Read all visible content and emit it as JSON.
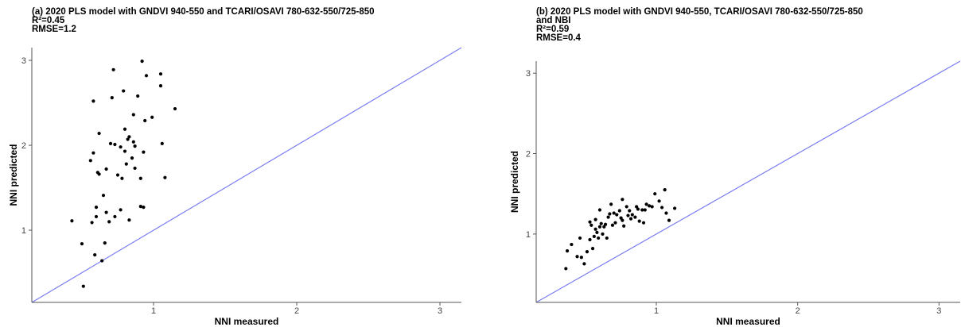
{
  "chart_data": [
    {
      "type": "scatter",
      "title": "(a) 2020 PLS model with GNDVI 940-550 and TCARI/OSAVI 780-632-550/725-850\nR²=0.45\nRMSE=1.2",
      "xlabel": "NNI measured",
      "ylabel": "NNI predicted",
      "xlim": [
        0.15,
        3.15
      ],
      "ylim": [
        0.15,
        3.15
      ],
      "xticks": [
        1,
        2,
        3
      ],
      "yticks": [
        1,
        2,
        3
      ],
      "x_tick_labels": [
        "1",
        "2",
        "3"
      ],
      "y_tick_labels": [
        "1",
        "2",
        "3"
      ],
      "grid": false,
      "identity_line": true,
      "points": [
        [
          0.43,
          1.11
        ],
        [
          0.5,
          0.84
        ],
        [
          0.51,
          0.34
        ],
        [
          0.56,
          1.82
        ],
        [
          0.57,
          1.09
        ],
        [
          0.58,
          2.52
        ],
        [
          0.58,
          1.91
        ],
        [
          0.59,
          0.71
        ],
        [
          0.6,
          1.27
        ],
        [
          0.6,
          1.16
        ],
        [
          0.61,
          1.68
        ],
        [
          0.62,
          1.66
        ],
        [
          0.62,
          2.14
        ],
        [
          0.64,
          0.64
        ],
        [
          0.65,
          1.41
        ],
        [
          0.66,
          0.85
        ],
        [
          0.67,
          1.72
        ],
        [
          0.67,
          1.21
        ],
        [
          0.69,
          1.1
        ],
        [
          0.7,
          2.02
        ],
        [
          0.71,
          2.56
        ],
        [
          0.72,
          2.89
        ],
        [
          0.73,
          1.16
        ],
        [
          0.73,
          2.01
        ],
        [
          0.75,
          1.65
        ],
        [
          0.77,
          1.98
        ],
        [
          0.77,
          1.24
        ],
        [
          0.78,
          1.61
        ],
        [
          0.79,
          2.64
        ],
        [
          0.8,
          2.19
        ],
        [
          0.8,
          1.93
        ],
        [
          0.81,
          1.78
        ],
        [
          0.82,
          2.07
        ],
        [
          0.83,
          1.12
        ],
        [
          0.83,
          2.1
        ],
        [
          0.85,
          1.85
        ],
        [
          0.86,
          2.36
        ],
        [
          0.86,
          2.04
        ],
        [
          0.87,
          1.73
        ],
        [
          0.87,
          1.99
        ],
        [
          0.89,
          2.58
        ],
        [
          0.91,
          1.61
        ],
        [
          0.91,
          1.28
        ],
        [
          0.92,
          2.99
        ],
        [
          0.93,
          1.27
        ],
        [
          0.93,
          1.92
        ],
        [
          0.94,
          2.29
        ],
        [
          0.95,
          2.82
        ],
        [
          0.99,
          2.33
        ],
        [
          1.05,
          2.84
        ],
        [
          1.05,
          2.7
        ],
        [
          1.06,
          2.02
        ],
        [
          1.08,
          1.62
        ],
        [
          1.15,
          2.43
        ]
      ]
    },
    {
      "type": "scatter",
      "title": "(b) 2020 PLS model with GNDVI 940-550, TCARI/OSAVI 780-632-550/725-850\nand NBI\nR²=0.59\nRMSE=0.4",
      "xlabel": "NNI measured",
      "ylabel": "NNI predicted",
      "xlim": [
        0.15,
        3.15
      ],
      "ylim": [
        0.15,
        3.15
      ],
      "xticks": [
        1,
        2,
        3
      ],
      "yticks": [
        1,
        2,
        3
      ],
      "x_tick_labels": [
        "1",
        "2",
        "3"
      ],
      "y_tick_labels": [
        "1",
        "2",
        "3"
      ],
      "grid": false,
      "identity_line": true,
      "points": [
        [
          0.36,
          0.57
        ],
        [
          0.37,
          0.79
        ],
        [
          0.4,
          0.87
        ],
        [
          0.44,
          0.72
        ],
        [
          0.46,
          0.95
        ],
        [
          0.47,
          0.71
        ],
        [
          0.49,
          0.63
        ],
        [
          0.51,
          0.78
        ],
        [
          0.53,
          0.93
        ],
        [
          0.53,
          1.15
        ],
        [
          0.54,
          1.11
        ],
        [
          0.55,
          0.82
        ],
        [
          0.56,
          0.97
        ],
        [
          0.57,
          1.18
        ],
        [
          0.57,
          1.06
        ],
        [
          0.58,
          1.02
        ],
        [
          0.59,
          0.95
        ],
        [
          0.6,
          1.3
        ],
        [
          0.6,
          1.09
        ],
        [
          0.61,
          1.13
        ],
        [
          0.62,
          1.0
        ],
        [
          0.63,
          1.09
        ],
        [
          0.64,
          1.12
        ],
        [
          0.65,
          0.95
        ],
        [
          0.66,
          1.21
        ],
        [
          0.67,
          1.25
        ],
        [
          0.68,
          1.37
        ],
        [
          0.69,
          1.11
        ],
        [
          0.7,
          1.26
        ],
        [
          0.71,
          1.14
        ],
        [
          0.72,
          1.24
        ],
        [
          0.74,
          1.29
        ],
        [
          0.75,
          1.2
        ],
        [
          0.76,
          1.43
        ],
        [
          0.76,
          1.17
        ],
        [
          0.77,
          1.1
        ],
        [
          0.79,
          1.34
        ],
        [
          0.8,
          1.23
        ],
        [
          0.81,
          1.29
        ],
        [
          0.82,
          1.19
        ],
        [
          0.83,
          1.24
        ],
        [
          0.85,
          1.21
        ],
        [
          0.86,
          1.34
        ],
        [
          0.87,
          1.31
        ],
        [
          0.88,
          1.16
        ],
        [
          0.9,
          1.3
        ],
        [
          0.91,
          1.14
        ],
        [
          0.92,
          1.3
        ],
        [
          0.93,
          1.37
        ],
        [
          0.95,
          1.35
        ],
        [
          0.97,
          1.34
        ],
        [
          0.99,
          1.5
        ],
        [
          1.02,
          1.41
        ],
        [
          1.04,
          1.33
        ],
        [
          1.06,
          1.55
        ],
        [
          1.07,
          1.26
        ],
        [
          1.09,
          1.17
        ],
        [
          1.13,
          1.32
        ]
      ]
    }
  ],
  "colors": {
    "identity_line": "#7a7df2",
    "points": "#000000",
    "axis": "#555555",
    "tick_label": "#444444"
  }
}
